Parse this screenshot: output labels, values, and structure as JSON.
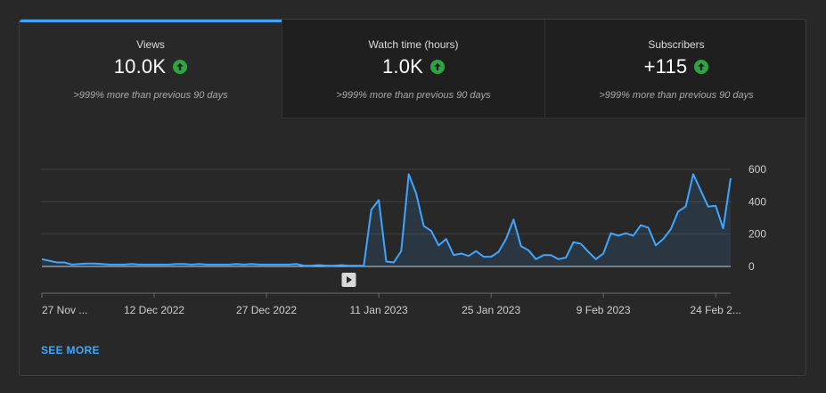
{
  "tabs": [
    {
      "label": "Views",
      "value": "10.0K",
      "note": ">999% more than previous 90 days",
      "trend_icon": "arrow-up-circle-icon",
      "active": true
    },
    {
      "label": "Watch time (hours)",
      "value": "1.0K",
      "note": ">999% more than previous 90 days",
      "trend_icon": "arrow-up-circle-icon",
      "active": false
    },
    {
      "label": "Subscribers",
      "value": "+115",
      "note": ">999% more than previous 90 days",
      "trend_icon": "arrow-up-circle-icon",
      "active": false
    }
  ],
  "colors": {
    "accent": "#3ea6ff",
    "line": "#3ea6ff",
    "up_green": "#2ba640"
  },
  "see_more_label": "SEE MORE",
  "chart_data": {
    "type": "area",
    "series": [
      {
        "values": [
          45,
          35,
          25,
          25,
          12,
          15,
          18,
          18,
          15,
          12,
          12,
          12,
          15,
          12,
          12,
          12,
          12,
          12,
          15,
          15,
          12,
          15,
          12,
          12,
          12,
          12,
          15,
          12,
          15,
          12,
          12,
          12,
          12,
          12,
          15,
          5,
          5,
          8,
          5,
          5,
          8,
          5,
          5,
          5,
          350,
          410,
          30,
          25,
          95,
          570,
          450,
          250,
          220,
          130,
          170,
          70,
          80,
          65,
          95,
          60,
          60,
          90,
          170,
          290,
          125,
          100,
          45,
          70,
          70,
          45,
          55,
          150,
          140,
          90,
          45,
          80,
          205,
          190,
          205,
          190,
          255,
          240,
          130,
          170,
          230,
          340,
          370,
          570,
          470,
          370,
          375,
          235,
          545
        ]
      }
    ],
    "x_tick_labels": [
      "27 Nov ...",
      "12 Dec 2022",
      "27 Dec 2022",
      "11 Jan 2023",
      "25 Jan 2023",
      "9 Feb 2023",
      "24 Feb 2..."
    ],
    "x_tick_index": [
      0,
      15,
      30,
      45,
      60,
      75,
      90
    ],
    "y_ticks": [
      0,
      200,
      400,
      600
    ],
    "ylim": [
      0,
      600
    ],
    "grid": true,
    "marker_icon": "play-icon",
    "marker_index": 41
  }
}
